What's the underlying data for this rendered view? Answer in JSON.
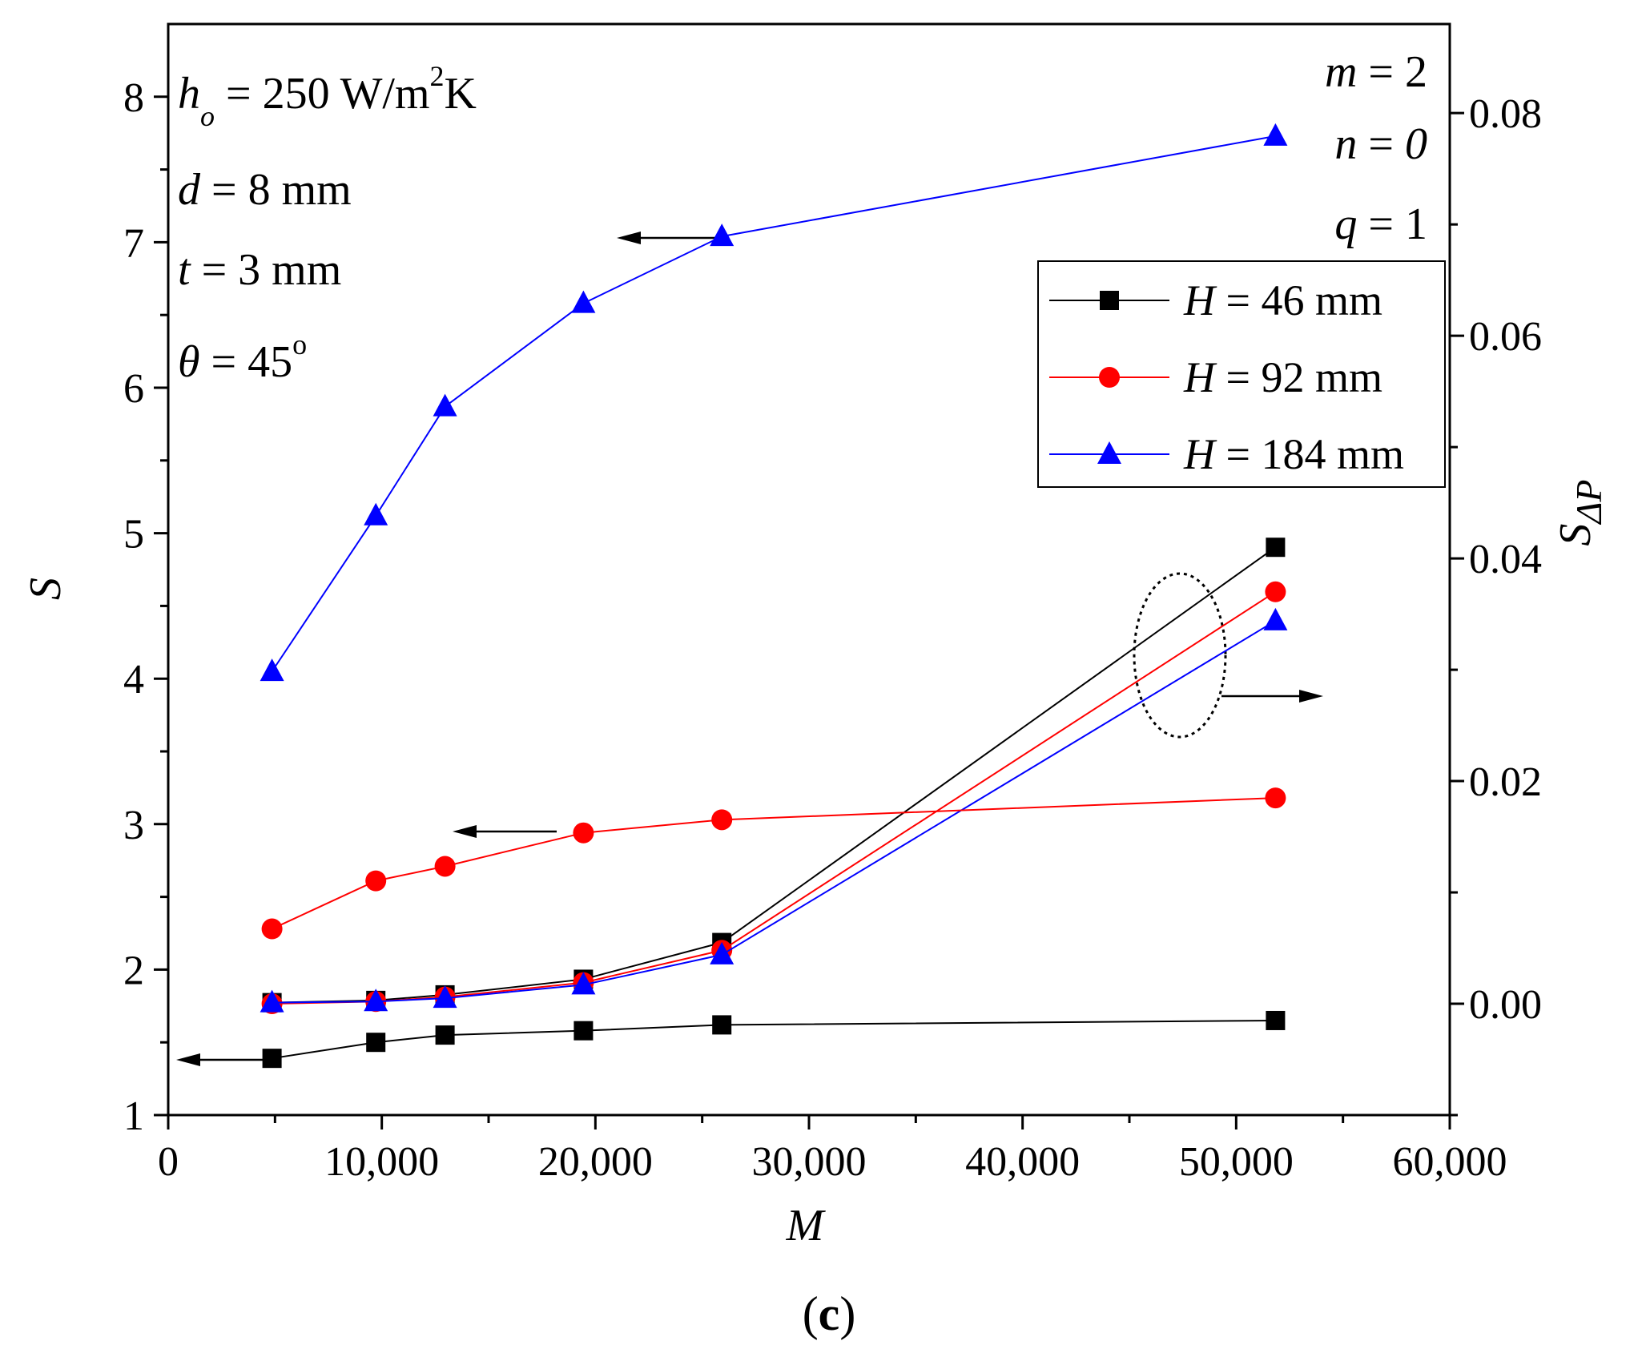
{
  "chart_data": {
    "type": "line",
    "x": [
      4860,
      9720,
      12960,
      19440,
      25920,
      51840
    ],
    "xlabel": "M",
    "ylabel_left": "S",
    "ylabel_right": "S",
    "ylabel_right_sub": "ΔP",
    "xlim": [
      0,
      60000
    ],
    "ylim_left": [
      1,
      8.5
    ],
    "ylim_right": [
      -0.01,
      0.088
    ],
    "x_ticks": [
      0,
      10000,
      20000,
      30000,
      40000,
      50000,
      60000
    ],
    "x_tick_labels": [
      "0",
      "10,000",
      "20,000",
      "30,000",
      "40,000",
      "50,000",
      "60,000"
    ],
    "y_left_ticks": [
      1,
      2,
      3,
      4,
      5,
      6,
      7,
      8
    ],
    "y_left_tick_labels": [
      "1",
      "2",
      "3",
      "4",
      "5",
      "6",
      "7",
      "8"
    ],
    "y_right_ticks": [
      0,
      0.02,
      0.04,
      0.06,
      0.08
    ],
    "y_right_tick_labels": [
      "0.00",
      "0.02",
      "0.04",
      "0.06",
      "0.08"
    ],
    "series": [
      {
        "name": "H = 46 mm",
        "legend_var": "H",
        "legend_rest": " = 46 mm",
        "color": "#000000",
        "marker": "square",
        "axis": "left",
        "values": [
          1.39,
          1.5,
          1.55,
          1.58,
          1.62,
          1.65
        ]
      },
      {
        "name": "H = 92 mm",
        "legend_var": "H",
        "legend_rest": " = 92 mm",
        "color": "#ff0000",
        "marker": "circle",
        "axis": "left",
        "values": [
          2.28,
          2.61,
          2.71,
          2.94,
          3.03,
          3.18
        ]
      },
      {
        "name": "H = 184 mm",
        "legend_var": "H",
        "legend_rest": " = 184 mm",
        "color": "#0000ff",
        "marker": "triangle",
        "axis": "left",
        "values": [
          4.05,
          5.12,
          5.87,
          6.58,
          7.04,
          7.73
        ]
      },
      {
        "name": "H = 46 mm (S_ΔP)",
        "color": "#000000",
        "marker": "square",
        "axis": "right",
        "values": [
          0.0001,
          0.0003,
          0.0008,
          0.0022,
          0.0055,
          0.041
        ]
      },
      {
        "name": "H = 92 mm (S_ΔP)",
        "color": "#ff0000",
        "marker": "circle",
        "axis": "right",
        "values": [
          0.0,
          0.0002,
          0.0006,
          0.0019,
          0.0048,
          0.037
        ]
      },
      {
        "name": "H = 184 mm (S_ΔP)",
        "color": "#0000ff",
        "marker": "triangle",
        "axis": "right",
        "values": [
          0.0001,
          0.0002,
          0.0005,
          0.0017,
          0.0044,
          0.0344
        ]
      }
    ],
    "annotations_left": {
      "ho_var": "h",
      "ho_sub": "o",
      "ho_rest": " = 250 W/m",
      "ho_sup": "2",
      "ho_unit": "K",
      "d_var": "d",
      "d_rest": " = 8 mm",
      "t_var": "t",
      "t_rest": " = 3 mm",
      "theta_var": "θ",
      "theta_rest": " = 45",
      "theta_sup": "o"
    },
    "annotations_right": {
      "m_var": "m",
      "m_rest": " = 2",
      "n_var": "n",
      "n_rest": " = ",
      "n_val": "0",
      "q_var": "q",
      "q_rest": "  = 1"
    },
    "panel_label_open": "(",
    "panel_label_letter": "c",
    "panel_label_close": ")",
    "legend_position": "upper-right"
  }
}
